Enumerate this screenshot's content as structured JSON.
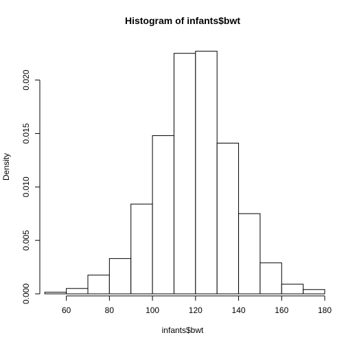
{
  "chart_data": {
    "type": "bar",
    "title": "Histogram of infants$bwt",
    "xlabel": "infants$bwt",
    "ylabel": "Density",
    "bin_edges": [
      50,
      60,
      70,
      80,
      90,
      100,
      110,
      120,
      130,
      140,
      150,
      160,
      170,
      180
    ],
    "values": [
      0.00015,
      0.0005,
      0.00175,
      0.0033,
      0.0084,
      0.0148,
      0.0225,
      0.0227,
      0.0141,
      0.0075,
      0.0029,
      0.0009,
      0.0004
    ],
    "xlim": [
      48,
      180
    ],
    "ylim": [
      0,
      0.0237
    ],
    "x_ticks": [
      60,
      80,
      100,
      120,
      140,
      160,
      180
    ],
    "x_tick_labels": [
      "60",
      "80",
      "100",
      "120",
      "140",
      "160",
      "180"
    ],
    "y_ticks": [
      0,
      0.005,
      0.01,
      0.015,
      0.02
    ],
    "y_tick_labels": [
      "0.000",
      "0.005",
      "0.010",
      "0.015",
      "0.020"
    ],
    "grid": false,
    "bar_fill": "#ffffff",
    "bar_stroke": "#000000"
  }
}
